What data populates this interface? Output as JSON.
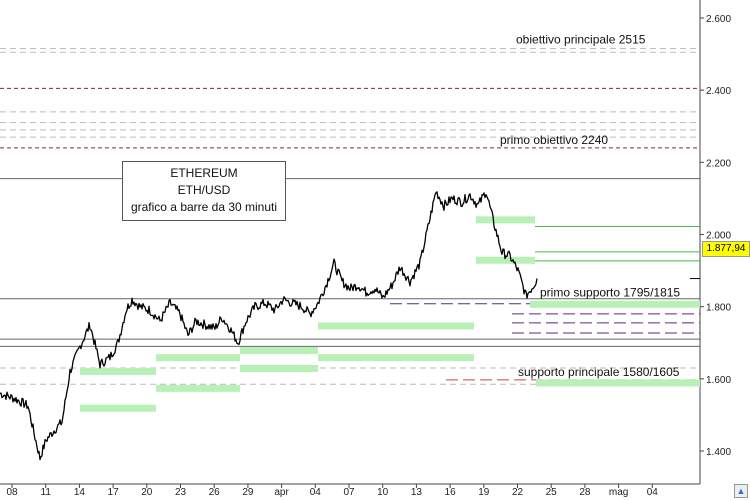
{
  "chart_data": {
    "type": "line",
    "title": "",
    "xlabel": "",
    "ylabel": "",
    "ylim": [
      1350,
      2700
    ],
    "y_ticks": [
      "1.400",
      "1.600",
      "1.800",
      "2.000",
      "2.200",
      "2.400",
      "2.600"
    ],
    "y_tick_values": [
      1400,
      1600,
      1800,
      2000,
      2200,
      2400,
      2600
    ],
    "x_ticks": [
      "08",
      "11",
      "14",
      "17",
      "20",
      "23",
      "26",
      "29",
      "apr",
      "04",
      "07",
      "10",
      "13",
      "16",
      "19",
      "22",
      "25",
      "28",
      "mag",
      "04"
    ],
    "last_price_label": "1.877,94",
    "last_price": 1877.94,
    "price_path": [
      {
        "x": 0,
        "y": 1560
      },
      {
        "x": 15,
        "y": 1545
      },
      {
        "x": 28,
        "y": 1525
      },
      {
        "x": 34,
        "y": 1450
      },
      {
        "x": 40,
        "y": 1380
      },
      {
        "x": 46,
        "y": 1430
      },
      {
        "x": 55,
        "y": 1460
      },
      {
        "x": 62,
        "y": 1480
      },
      {
        "x": 70,
        "y": 1620
      },
      {
        "x": 80,
        "y": 1690
      },
      {
        "x": 90,
        "y": 1750
      },
      {
        "x": 100,
        "y": 1640
      },
      {
        "x": 110,
        "y": 1660
      },
      {
        "x": 118,
        "y": 1700
      },
      {
        "x": 126,
        "y": 1790
      },
      {
        "x": 132,
        "y": 1820
      },
      {
        "x": 140,
        "y": 1800
      },
      {
        "x": 150,
        "y": 1790
      },
      {
        "x": 160,
        "y": 1760
      },
      {
        "x": 170,
        "y": 1810
      },
      {
        "x": 180,
        "y": 1780
      },
      {
        "x": 188,
        "y": 1720
      },
      {
        "x": 196,
        "y": 1760
      },
      {
        "x": 205,
        "y": 1750
      },
      {
        "x": 215,
        "y": 1740
      },
      {
        "x": 222,
        "y": 1770
      },
      {
        "x": 230,
        "y": 1740
      },
      {
        "x": 238,
        "y": 1700
      },
      {
        "x": 246,
        "y": 1760
      },
      {
        "x": 255,
        "y": 1800
      },
      {
        "x": 265,
        "y": 1810
      },
      {
        "x": 275,
        "y": 1790
      },
      {
        "x": 283,
        "y": 1820
      },
      {
        "x": 292,
        "y": 1810
      },
      {
        "x": 302,
        "y": 1800
      },
      {
        "x": 310,
        "y": 1780
      },
      {
        "x": 318,
        "y": 1810
      },
      {
        "x": 326,
        "y": 1860
      },
      {
        "x": 334,
        "y": 1920
      },
      {
        "x": 342,
        "y": 1870
      },
      {
        "x": 350,
        "y": 1850
      },
      {
        "x": 358,
        "y": 1860
      },
      {
        "x": 366,
        "y": 1840
      },
      {
        "x": 375,
        "y": 1850
      },
      {
        "x": 383,
        "y": 1825
      },
      {
        "x": 392,
        "y": 1860
      },
      {
        "x": 400,
        "y": 1910
      },
      {
        "x": 410,
        "y": 1870
      },
      {
        "x": 420,
        "y": 1920
      },
      {
        "x": 428,
        "y": 2020
      },
      {
        "x": 436,
        "y": 2120
      },
      {
        "x": 444,
        "y": 2080
      },
      {
        "x": 452,
        "y": 2100
      },
      {
        "x": 462,
        "y": 2090
      },
      {
        "x": 470,
        "y": 2110
      },
      {
        "x": 478,
        "y": 2080
      },
      {
        "x": 486,
        "y": 2120
      },
      {
        "x": 494,
        "y": 2030
      },
      {
        "x": 502,
        "y": 1950
      },
      {
        "x": 510,
        "y": 1940
      },
      {
        "x": 518,
        "y": 1900
      },
      {
        "x": 526,
        "y": 1830
      },
      {
        "x": 534,
        "y": 1860
      },
      {
        "x": 537,
        "y": 1877.94
      }
    ],
    "annotations": [
      {
        "label": "obiettivo principale 2515",
        "value": 2515
      },
      {
        "label": "primo obiettivo 2240",
        "value": 2240
      },
      {
        "label": "primo supporto 1795/1815",
        "value": 1815
      },
      {
        "label": "supporto principale 1580/1605",
        "value": 1605
      }
    ],
    "info_box": {
      "line1": "ETHEREUM",
      "line2": "ETH/USD",
      "line3": "grafico a barre da 30 minuti"
    },
    "horizontal_levels": [
      {
        "value": 2515,
        "style": "gray-dashed"
      },
      {
        "value": 2505,
        "style": "gray-dashed"
      },
      {
        "value": 2405,
        "style": "maroon-dashed"
      },
      {
        "value": 2340,
        "style": "gray-dashed"
      },
      {
        "value": 2310,
        "style": "gray-dashed"
      },
      {
        "value": 2290,
        "style": "gray-dashed"
      },
      {
        "value": 2270,
        "style": "gray-dashed"
      },
      {
        "value": 2240,
        "style": "maroon-dashed"
      },
      {
        "value": 2155,
        "style": "dark-solid"
      },
      {
        "value": 1822,
        "style": "dark-solid"
      },
      {
        "value": 1710,
        "style": "dark-solid"
      },
      {
        "value": 1690,
        "style": "dark-solid"
      },
      {
        "value": 1630,
        "style": "gray-dashed"
      },
      {
        "value": 1585,
        "style": "gray-dashed"
      }
    ],
    "green_bands": [
      {
        "x1": 80,
        "x2": 156,
        "value": 1520
      },
      {
        "x1": 80,
        "x2": 156,
        "value": 1622
      },
      {
        "x1": 156,
        "x2": 240,
        "value": 1575
      },
      {
        "x1": 156,
        "x2": 240,
        "value": 1660
      },
      {
        "x1": 240,
        "x2": 318,
        "value": 1630
      },
      {
        "x1": 240,
        "x2": 318,
        "value": 1680
      },
      {
        "x1": 318,
        "x2": 474,
        "value": 1748
      },
      {
        "x1": 318,
        "x2": 474,
        "value": 1660
      },
      {
        "x1": 476,
        "x2": 535,
        "value": 2042
      },
      {
        "x1": 476,
        "x2": 535,
        "value": 1930
      },
      {
        "x1": 530,
        "x2": 700,
        "value": 1808
      },
      {
        "x1": 536,
        "x2": 700,
        "value": 1590
      }
    ],
    "green_lines": [
      2022,
      1952,
      1927
    ],
    "short_dashes": [
      {
        "x1": 390,
        "x2": 700,
        "value": 1808,
        "color": "#5a2a7a"
      },
      {
        "x1": 512,
        "x2": 700,
        "value": 1780,
        "color": "#5a2a7a"
      },
      {
        "x1": 512,
        "x2": 700,
        "value": 1755,
        "color": "#5a2a7a"
      },
      {
        "x1": 512,
        "x2": 700,
        "value": 1727,
        "color": "#5a2a7a"
      },
      {
        "x1": 446,
        "x2": 700,
        "value": 1597,
        "color": "#c44"
      }
    ],
    "grid": false
  },
  "scroll_button": {
    "icon": "arrow-up"
  }
}
